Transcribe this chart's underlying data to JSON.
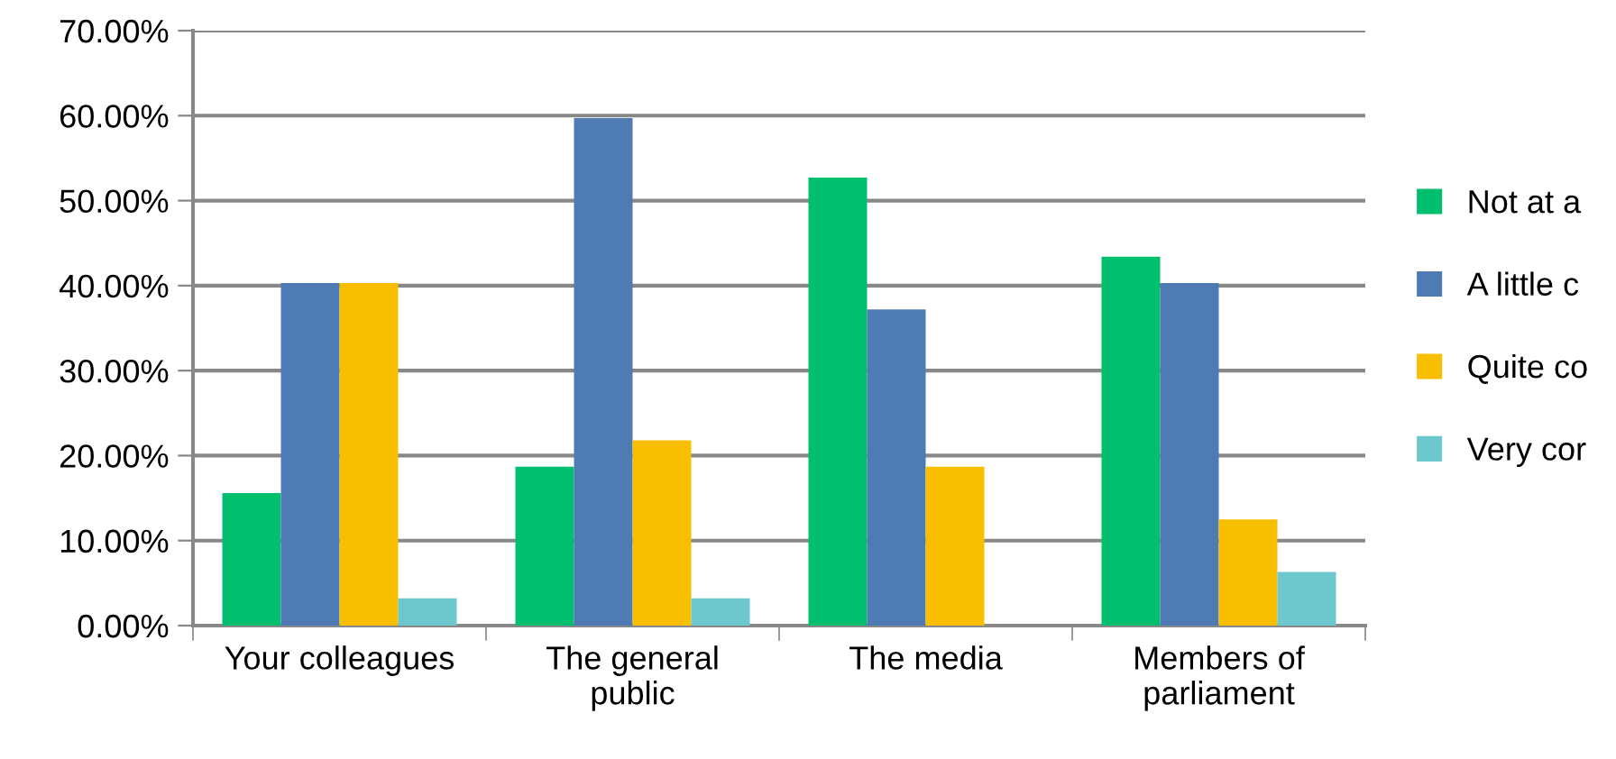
{
  "chart_data": {
    "type": "bar",
    "categories": [
      "Your colleagues",
      "The general\npublic",
      "The media",
      "Members of\nparliament"
    ],
    "series": [
      {
        "name": "Not at a",
        "color": "#00bf6f",
        "values": [
          15.6,
          18.7,
          52.7,
          43.4
        ]
      },
      {
        "name": "A little c",
        "color": "#4f7bb5",
        "values": [
          40.3,
          59.7,
          37.2,
          40.3
        ]
      },
      {
        "name": "Quite co",
        "color": "#f8bf00",
        "values": [
          40.3,
          21.8,
          18.7,
          12.5
        ]
      },
      {
        "name": "Very cor",
        "color": "#6cc8cc",
        "values": [
          3.2,
          3.2,
          0,
          6.3
        ]
      }
    ],
    "ylim": [
      0,
      70
    ],
    "yticks": [
      {
        "value": 0,
        "label": "0.00%"
      },
      {
        "value": 10,
        "label": "10.00%"
      },
      {
        "value": 20,
        "label": "20.00%"
      },
      {
        "value": 30,
        "label": "30.00%"
      },
      {
        "value": 40,
        "label": "40.00%"
      },
      {
        "value": 50,
        "label": "50.00%"
      },
      {
        "value": 60,
        "label": "60.00%"
      },
      {
        "value": 70,
        "label": "70.00%"
      }
    ],
    "grid": "y",
    "legend": "right"
  }
}
